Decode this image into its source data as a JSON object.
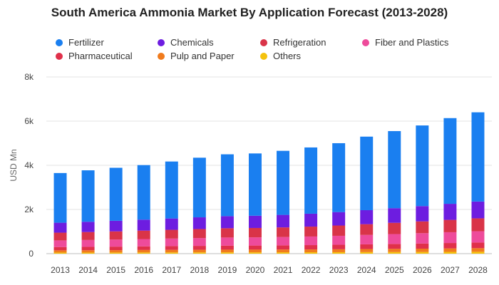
{
  "chart_data": {
    "type": "bar",
    "stacked": true,
    "title": "South America Ammonia Market By Application Forecast (2013-2028)",
    "ylabel": "USD Mn",
    "xlabel": "",
    "ylim": [
      0,
      8000
    ],
    "yticks": [
      0,
      2000,
      4000,
      6000,
      8000
    ],
    "ytick_labels": [
      "0",
      "2k",
      "4k",
      "6k",
      "8k"
    ],
    "grid": true,
    "legend_position": "top",
    "categories": [
      "2013",
      "2014",
      "2015",
      "2016",
      "2017",
      "2018",
      "2019",
      "2020",
      "2021",
      "2022",
      "2023",
      "2024",
      "2025",
      "2026",
      "2027",
      "2028"
    ],
    "series": [
      {
        "name": "Others",
        "color": "#f4c20d",
        "values": [
          50,
          50,
          52,
          55,
          57,
          58,
          60,
          60,
          62,
          63,
          66,
          70,
          73,
          76,
          80,
          84
        ]
      },
      {
        "name": "Pulp and Paper",
        "color": "#f07b1d",
        "values": [
          100,
          103,
          106,
          110,
          113,
          116,
          120,
          121,
          124,
          127,
          132,
          138,
          144,
          150,
          157,
          164
        ]
      },
      {
        "name": "Pharmaceutical",
        "color": "#e0304a",
        "values": [
          150,
          155,
          160,
          166,
          172,
          178,
          184,
          186,
          190,
          196,
          204,
          214,
          224,
          234,
          245,
          256
        ]
      },
      {
        "name": "Fiber and Plastics",
        "color": "#ee4b9b",
        "values": [
          300,
          310,
          320,
          330,
          342,
          354,
          366,
          370,
          378,
          390,
          406,
          425,
          445,
          466,
          488,
          510
        ]
      },
      {
        "name": "Refrigeration",
        "color": "#d93448",
        "values": [
          350,
          360,
          370,
          382,
          395,
          408,
          420,
          425,
          434,
          448,
          466,
          487,
          510,
          534,
          559,
          585
        ]
      },
      {
        "name": "Chemicals",
        "color": "#6d1de0",
        "values": [
          450,
          465,
          480,
          496,
          513,
          530,
          548,
          555,
          567,
          584,
          607,
          634,
          663,
          694,
          727,
          760
        ]
      },
      {
        "name": "Fertilizer",
        "color": "#1a7ff0",
        "values": [
          2250,
          2330,
          2400,
          2470,
          2580,
          2700,
          2800,
          2820,
          2900,
          3000,
          3120,
          3330,
          3490,
          3650,
          3880,
          4040
        ]
      }
    ]
  },
  "legend": [
    {
      "label": "Fertilizer",
      "color": "#1a7ff0"
    },
    {
      "label": "Chemicals",
      "color": "#6d1de0"
    },
    {
      "label": "Refrigeration",
      "color": "#d93448"
    },
    {
      "label": "Fiber and Plastics",
      "color": "#ee4b9b"
    },
    {
      "label": "Pharmaceutical",
      "color": "#e0304a"
    },
    {
      "label": "Pulp and Paper",
      "color": "#f07b1d"
    },
    {
      "label": "Others",
      "color": "#f4c20d"
    }
  ]
}
